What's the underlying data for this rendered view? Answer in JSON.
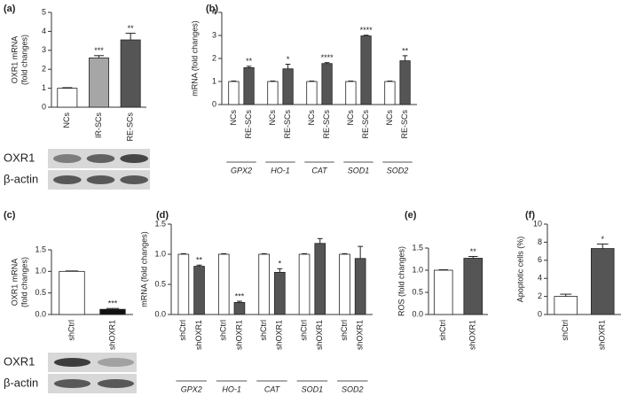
{
  "chart_data": [
    {
      "type": "bar",
      "panel": "(a)",
      "y_label": [
        "OXR1 mRNA",
        "(fold changes)"
      ],
      "categories": [
        "NCs",
        "IR-SCs",
        "RE-SCs"
      ],
      "values": [
        1.0,
        2.6,
        3.55
      ],
      "errors": [
        0.03,
        0.12,
        0.35
      ],
      "colors": [
        "#ffffff",
        "#a6a6a6",
        "#555555"
      ],
      "significance": [
        null,
        "***",
        "**"
      ],
      "ylim": [
        0,
        5
      ],
      "yticks": [
        0,
        1,
        2,
        3,
        4,
        5
      ],
      "blot_labels": [
        "OXR1",
        "β-actin"
      ]
    },
    {
      "type": "grouped_bar",
      "panel": "(b)",
      "y_label": [
        "mRNA (fold changes)"
      ],
      "categories": [
        "GPX2",
        "HO-1",
        "CAT",
        "SOD1",
        "SOD2"
      ],
      "series": [
        {
          "name": "NCs",
          "color": "#ffffff",
          "values": [
            1,
            1,
            1,
            1,
            1
          ],
          "errors": [
            0.02,
            0.02,
            0.02,
            0.02,
            0.02
          ]
        },
        {
          "name": "RE-SCs",
          "color": "#555555",
          "values": [
            1.6,
            1.55,
            1.78,
            2.98,
            1.9
          ],
          "errors": [
            0.06,
            0.2,
            0.04,
            0.03,
            0.22
          ]
        }
      ],
      "significance": [
        "**",
        "*",
        "****",
        "****",
        "**"
      ],
      "ylim": [
        0,
        4
      ],
      "yticks": [
        0,
        1,
        2,
        3,
        4
      ]
    },
    {
      "type": "bar",
      "panel": "(c)",
      "y_label": [
        "OXR1 mRNA",
        "(fold changes)"
      ],
      "categories": [
        "shCtrl",
        "shOXR1"
      ],
      "values": [
        1.0,
        0.12
      ],
      "errors": [
        0.01,
        0.02
      ],
      "colors": [
        "#ffffff",
        "#111111"
      ],
      "significance": [
        null,
        "***"
      ],
      "ylim": [
        0,
        1.5
      ],
      "yticks": [
        {
          "value": 0,
          "label": "0.0"
        },
        {
          "value": 0.5,
          "label": "0.5"
        },
        {
          "value": 1,
          "label": "1.0"
        },
        {
          "value": 1.5,
          "label": "1.5"
        }
      ],
      "blot_labels": [
        "OXR1",
        "β-actin"
      ]
    },
    {
      "type": "grouped_bar",
      "panel": "(d)",
      "y_label": [
        "mRNA (fold changes)"
      ],
      "categories": [
        "GPX2",
        "HO-1",
        "CAT",
        "SOD1",
        "SOD2"
      ],
      "series": [
        {
          "name": "shCtrl",
          "color": "#ffffff",
          "values": [
            1,
            1,
            1,
            1,
            1
          ],
          "errors": [
            0.01,
            0.01,
            0.01,
            0.01,
            0.01
          ]
        },
        {
          "name": "shOXR1",
          "color": "#555555",
          "values": [
            0.8,
            0.2,
            0.7,
            1.18,
            0.93
          ],
          "errors": [
            0.02,
            0.02,
            0.06,
            0.08,
            0.2
          ]
        }
      ],
      "significance": [
        "**",
        "***",
        "*",
        null,
        null
      ],
      "ylim": [
        0,
        1.5
      ],
      "yticks": [
        {
          "value": 0,
          "label": "0.0"
        },
        {
          "value": 0.5,
          "label": "0.5"
        },
        {
          "value": 1,
          "label": "1.0"
        },
        {
          "value": 1.5,
          "label": "1.5"
        }
      ]
    },
    {
      "type": "bar",
      "panel": "(e)",
      "y_label": [
        "ROS (fold changes)"
      ],
      "categories": [
        "shCtrl",
        "shOXR1"
      ],
      "values": [
        1.0,
        1.27
      ],
      "errors": [
        0.01,
        0.04
      ],
      "colors": [
        "#ffffff",
        "#555555"
      ],
      "significance": [
        null,
        "**"
      ],
      "ylim": [
        0,
        1.5
      ],
      "yticks": [
        {
          "value": 0,
          "label": "0.0"
        },
        {
          "value": 0.5,
          "label": "0.5"
        },
        {
          "value": 1,
          "label": "1.0"
        },
        {
          "value": 1.5,
          "label": "1.5"
        }
      ]
    },
    {
      "type": "bar",
      "panel": "(f)",
      "y_label": [
        "Apoptotic cells (%)"
      ],
      "categories": [
        "shCtrl",
        "shOXR1"
      ],
      "values": [
        2.0,
        7.3
      ],
      "errors": [
        0.25,
        0.5
      ],
      "colors": [
        "#ffffff",
        "#555555"
      ],
      "significance": [
        null,
        "*"
      ],
      "ylim": [
        0,
        10
      ],
      "yticks": [
        0,
        2,
        4,
        6,
        8,
        10
      ]
    }
  ]
}
